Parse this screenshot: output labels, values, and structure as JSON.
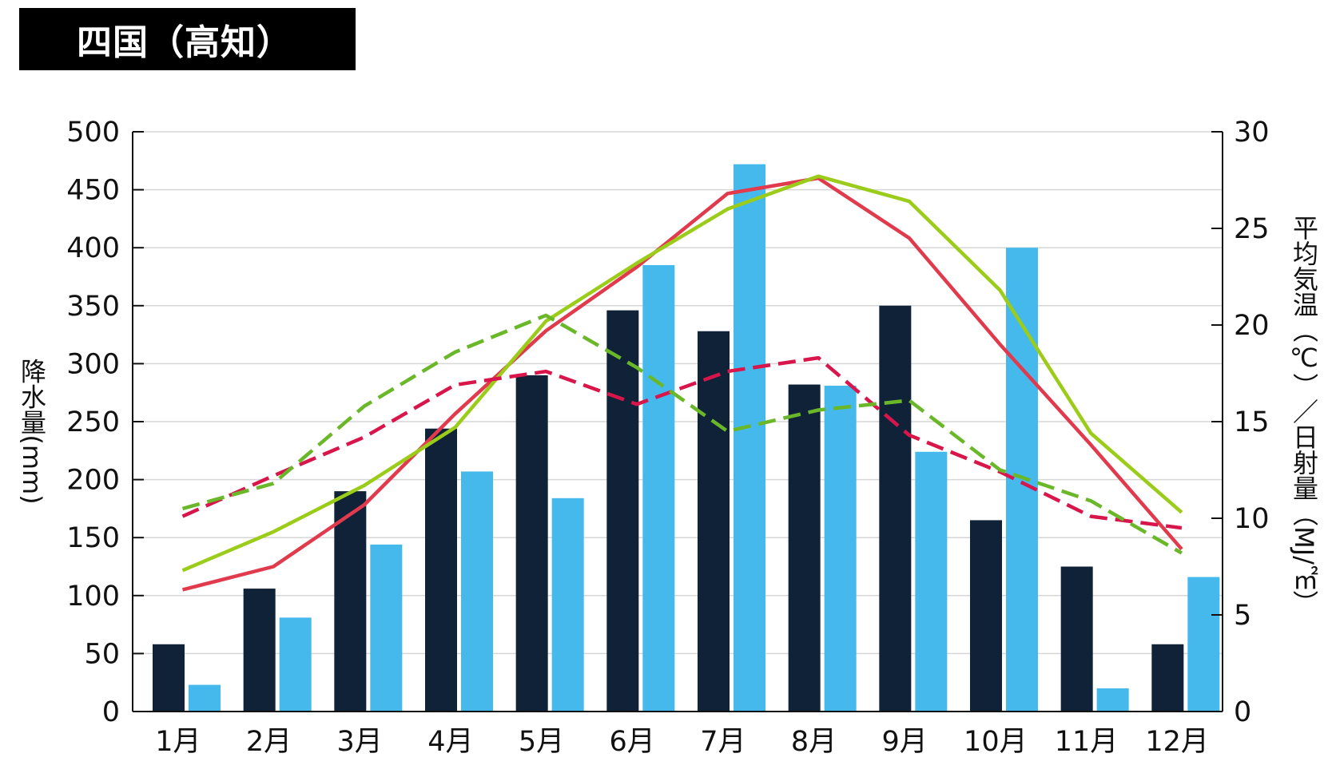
{
  "title": "四国（高知）",
  "colors": {
    "precip_bar_1": "#0f2238",
    "precip_bar_2": "#45b9ec",
    "temp_line_1": "#e03a4c",
    "temp_line_2": "#9ccc1a",
    "solar_dashed_1": "#d8164b",
    "solar_dashed_2": "#6ab82a",
    "grid": "#d6d6d6"
  },
  "chart_data": {
    "type": "bar+line",
    "categories": [
      "1月",
      "2月",
      "3月",
      "4月",
      "5月",
      "6月",
      "7月",
      "8月",
      "9月",
      "10月",
      "11月",
      "12月"
    ],
    "y_left": {
      "label": "降水量(mm)",
      "range": [
        0,
        500
      ],
      "ticks": [
        0,
        50,
        100,
        150,
        200,
        250,
        300,
        350,
        400,
        450,
        500
      ]
    },
    "y_right": {
      "label": "平均気温（℃）／日射量（MJ/㎡）",
      "range": [
        0,
        30
      ],
      "ticks": [
        0,
        5,
        10,
        15,
        20,
        25,
        30
      ]
    },
    "grid": true,
    "bars": [
      {
        "color_key": "precip_bar_1",
        "values": [
          58,
          106,
          190,
          244,
          290,
          346,
          328,
          282,
          350,
          165,
          125,
          58
        ]
      },
      {
        "color_key": "precip_bar_2",
        "values": [
          23,
          81,
          144,
          207,
          184,
          385,
          472,
          281,
          224,
          400,
          20,
          116
        ]
      }
    ],
    "lines": [
      {
        "color_key": "temp_line_1",
        "style": "solid",
        "axis": "right",
        "values": [
          6.3,
          7.5,
          10.7,
          15.4,
          19.7,
          23.0,
          26.8,
          27.6,
          24.5,
          19.0,
          13.8,
          8.4
        ]
      },
      {
        "color_key": "temp_line_2",
        "style": "solid",
        "axis": "right",
        "values": [
          7.3,
          9.3,
          11.7,
          14.7,
          20.2,
          23.2,
          26.0,
          27.7,
          26.4,
          21.8,
          14.4,
          10.3
        ]
      },
      {
        "color_key": "solar_dashed_1",
        "style": "dashed",
        "axis": "right",
        "values": [
          10.1,
          12.2,
          14.2,
          16.9,
          17.6,
          15.9,
          17.6,
          18.3,
          14.3,
          12.4,
          10.1,
          9.5
        ]
      },
      {
        "color_key": "solar_dashed_2",
        "style": "dashed",
        "axis": "right",
        "values": [
          10.5,
          11.8,
          15.8,
          18.6,
          20.5,
          17.8,
          14.5,
          15.6,
          16.1,
          12.5,
          10.9,
          8.2
        ]
      }
    ]
  }
}
